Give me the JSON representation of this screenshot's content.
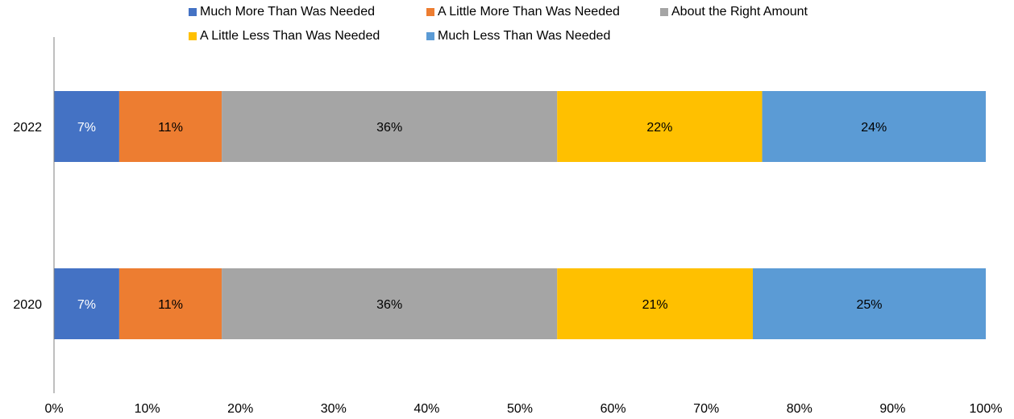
{
  "chart_data": {
    "type": "bar",
    "orientation": "horizontal",
    "stacked": true,
    "categories": [
      "2022",
      "2020"
    ],
    "series": [
      {
        "name": "Much More Than Was Needed",
        "color": "#4472C4",
        "values": [
          7,
          7
        ],
        "labels": [
          "7%",
          "7%"
        ]
      },
      {
        "name": "A Little More Than Was Needed",
        "color": "#ED7D31",
        "values": [
          11,
          11
        ],
        "labels": [
          "11%",
          "11%"
        ]
      },
      {
        "name": "About the Right Amount",
        "color": "#A5A5A5",
        "values": [
          36,
          36
        ],
        "labels": [
          "36%",
          "36%"
        ]
      },
      {
        "name": "A Little Less Than Was Needed",
        "color": "#FFC000",
        "values": [
          22,
          21
        ],
        "labels": [
          "22%",
          "21%"
        ]
      },
      {
        "name": "Much Less Than Was Needed",
        "color": "#5B9BD5",
        "values": [
          24,
          25
        ],
        "labels": [
          "24%",
          "25%"
        ]
      }
    ],
    "xlim": [
      0,
      100
    ],
    "xticks": [
      "0%",
      "10%",
      "20%",
      "30%",
      "40%",
      "50%",
      "60%",
      "70%",
      "80%",
      "90%",
      "100%"
    ],
    "legend_position": "top",
    "grid": false
  }
}
